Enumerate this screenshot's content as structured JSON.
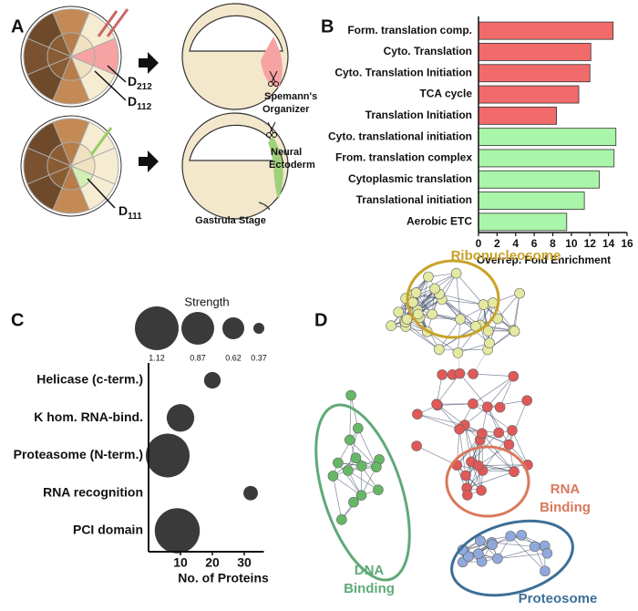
{
  "panel_labels": [
    "A",
    "B",
    "C",
    "D"
  ],
  "panel_a": {
    "cells": [
      {
        "main": "D",
        "sub": "212"
      },
      {
        "main": "D",
        "sub": "112"
      },
      {
        "main": "D",
        "sub": "111"
      }
    ],
    "organizer": [
      "Spemann's",
      "Organizer"
    ],
    "ectoderm": [
      "Neural",
      "Ectoderm"
    ],
    "stage": "Gastrula Stage"
  },
  "chart_data": [
    {
      "type": "bar",
      "orientation": "horizontal",
      "categories": [
        "Form. translation comp.",
        "Cyto. Translation",
        "Cyto. Translation Initiation",
        "TCA cycle",
        "Translation Initiation",
        "Cyto. translational initiation",
        "From. translation complex",
        "Cytoplasmic translation",
        "Translational initiation",
        "Aerobic ETC"
      ],
      "values": [
        14.5,
        12.1,
        12.0,
        10.8,
        8.4,
        14.8,
        14.6,
        13.0,
        11.4,
        9.5
      ],
      "colors": [
        "#f26b6b",
        "#f26b6b",
        "#f26b6b",
        "#f26b6b",
        "#f26b6b",
        "#a9f5a9",
        "#a9f5a9",
        "#a9f5a9",
        "#a9f5a9",
        "#a9f5a9"
      ],
      "xlabel": "Overrep. Fold Enrichment",
      "xlim": [
        0,
        16
      ],
      "xticks": [
        0,
        2,
        4,
        6,
        8,
        10,
        12,
        14,
        16
      ]
    },
    {
      "type": "scatter",
      "color": "#3a3a3a",
      "categories": [
        "Helicase (c-term.)",
        "K hom. RNA-bind.",
        "Proteasome (N-term.)",
        "RNA recognition",
        "PCI domain"
      ],
      "x": [
        20,
        10,
        6,
        32,
        9
      ],
      "sizes": [
        0.5,
        0.75,
        1.12,
        0.45,
        1.15
      ],
      "xlabel": "No. of Proteins",
      "xlim": [
        0,
        35
      ],
      "xticks": [
        10,
        20,
        30
      ],
      "size_legend": {
        "title": "Strength",
        "values": [
          1.12,
          0.87,
          0.62,
          0.37
        ]
      }
    }
  ],
  "panel_d": {
    "clusters": [
      {
        "lines": [
          "Ribonucleosome"
        ],
        "color": "#c9a227"
      },
      {
        "lines": [
          "RNA",
          "Binding"
        ],
        "color": "#d9785c"
      },
      {
        "lines": [
          "DNA",
          "Binding"
        ],
        "color": "#5faa78"
      },
      {
        "lines": [
          "Proteosome"
        ],
        "color": "#3d6f97"
      }
    ]
  }
}
